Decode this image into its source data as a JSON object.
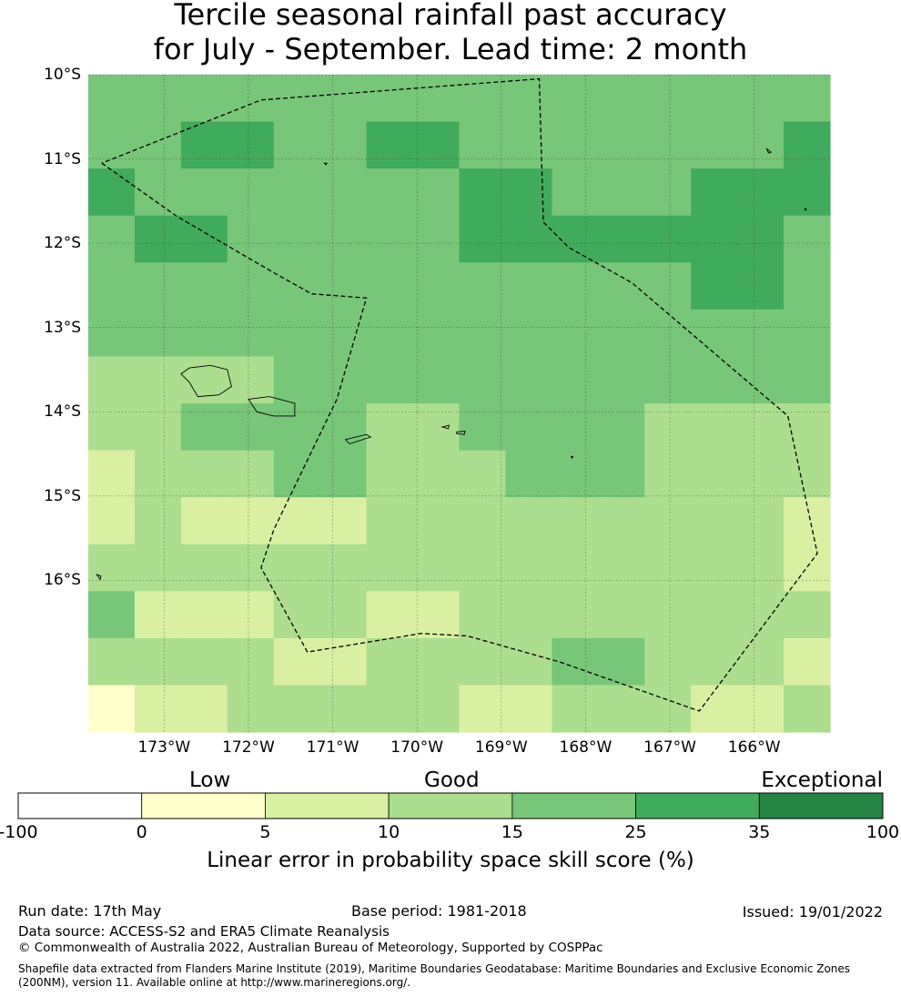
{
  "title": {
    "line1": "Tercile seasonal rainfall past accuracy",
    "line2": "for July - September. Lead time: 2 month"
  },
  "map": {
    "lon_range": [
      -173.9,
      -165.1
    ],
    "lat_range": [
      -17.8,
      -10.0
    ],
    "lat_ticks": [
      {
        "value": -10,
        "label": "10°S"
      },
      {
        "value": -11,
        "label": "11°S"
      },
      {
        "value": -12,
        "label": "12°S"
      },
      {
        "value": -13,
        "label": "13°S"
      },
      {
        "value": -14,
        "label": "14°S"
      },
      {
        "value": -15,
        "label": "15°S"
      },
      {
        "value": -16,
        "label": "16°S"
      }
    ],
    "lon_ticks": [
      {
        "value": -173,
        "label": "173°W"
      },
      {
        "value": -172,
        "label": "172°W"
      },
      {
        "value": -171,
        "label": "171°W"
      },
      {
        "value": -170,
        "label": "170°W"
      },
      {
        "value": -169,
        "label": "169°W"
      },
      {
        "value": -168,
        "label": "168°W"
      },
      {
        "value": -167,
        "label": "167°W"
      },
      {
        "value": -166,
        "label": "166°W"
      }
    ],
    "grid_cols": 16,
    "grid_rows": 14,
    "grid_note_values": "skill class index per cell (0=-100..0, 1=0..5, 2=5..10, 3=10..15, 4=15..25, 5=25..35, 6=35..100)",
    "grid": [
      [
        4,
        4,
        4,
        4,
        4,
        4,
        4,
        4,
        4,
        4,
        4,
        4,
        4,
        4,
        4,
        4
      ],
      [
        4,
        4,
        5,
        5,
        4,
        4,
        5,
        5,
        4,
        4,
        4,
        4,
        4,
        4,
        4,
        5
      ],
      [
        5,
        4,
        4,
        4,
        4,
        4,
        4,
        4,
        5,
        5,
        4,
        4,
        4,
        5,
        5,
        5
      ],
      [
        4,
        5,
        5,
        4,
        4,
        4,
        4,
        4,
        5,
        5,
        5,
        5,
        5,
        5,
        5,
        4
      ],
      [
        4,
        4,
        4,
        4,
        4,
        4,
        4,
        4,
        4,
        4,
        4,
        4,
        4,
        5,
        5,
        4
      ],
      [
        4,
        4,
        4,
        4,
        4,
        4,
        4,
        4,
        4,
        4,
        4,
        4,
        4,
        4,
        4,
        4
      ],
      [
        3,
        3,
        3,
        3,
        4,
        4,
        4,
        4,
        4,
        4,
        4,
        4,
        4,
        4,
        4,
        4
      ],
      [
        3,
        3,
        4,
        4,
        4,
        4,
        3,
        3,
        4,
        4,
        4,
        4,
        3,
        3,
        3,
        3
      ],
      [
        2,
        3,
        3,
        3,
        4,
        4,
        3,
        3,
        3,
        4,
        4,
        4,
        3,
        3,
        3,
        3
      ],
      [
        2,
        3,
        2,
        2,
        2,
        2,
        3,
        3,
        3,
        3,
        3,
        3,
        3,
        3,
        3,
        2
      ],
      [
        3,
        3,
        3,
        3,
        3,
        3,
        3,
        3,
        3,
        3,
        3,
        3,
        3,
        3,
        3,
        2
      ],
      [
        4,
        2,
        2,
        2,
        3,
        3,
        2,
        2,
        3,
        3,
        3,
        3,
        3,
        3,
        3,
        3
      ],
      [
        3,
        3,
        3,
        3,
        2,
        2,
        3,
        3,
        3,
        3,
        4,
        4,
        3,
        3,
        3,
        2
      ],
      [
        1,
        2,
        2,
        3,
        3,
        3,
        3,
        3,
        2,
        2,
        3,
        3,
        3,
        2,
        2,
        3
      ]
    ],
    "eez_boundary": [
      [
        -173.74,
        -11.05
      ],
      [
        -172.85,
        -11.68
      ],
      [
        -171.7,
        -12.35
      ],
      [
        -171.25,
        -12.6
      ],
      [
        -170.6,
        -12.65
      ],
      [
        -170.95,
        -13.85
      ],
      [
        -171.7,
        -15.4
      ],
      [
        -171.85,
        -15.85
      ],
      [
        -171.3,
        -16.85
      ],
      [
        -169.95,
        -16.63
      ],
      [
        -169.4,
        -16.66
      ],
      [
        -168.3,
        -16.97
      ],
      [
        -166.65,
        -17.55
      ],
      [
        -165.25,
        -15.68
      ],
      [
        -165.6,
        -14.05
      ],
      [
        -167.45,
        -12.47
      ],
      [
        -168.2,
        -12.05
      ],
      [
        -168.5,
        -11.75
      ],
      [
        -168.55,
        -10.05
      ],
      [
        -171.85,
        -10.3
      ],
      [
        -173.74,
        -11.05
      ]
    ],
    "islands": [
      {
        "name": "savaii",
        "pts": [
          [
            -172.8,
            -13.55
          ],
          [
            -172.7,
            -13.48
          ],
          [
            -172.45,
            -13.45
          ],
          [
            -172.25,
            -13.5
          ],
          [
            -172.2,
            -13.7
          ],
          [
            -172.35,
            -13.8
          ],
          [
            -172.6,
            -13.82
          ],
          [
            -172.7,
            -13.65
          ],
          [
            -172.8,
            -13.55
          ]
        ]
      },
      {
        "name": "upolu",
        "pts": [
          [
            -172.0,
            -13.85
          ],
          [
            -171.75,
            -13.82
          ],
          [
            -171.45,
            -13.9
          ],
          [
            -171.45,
            -14.05
          ],
          [
            -171.7,
            -14.05
          ],
          [
            -171.9,
            -14.0
          ],
          [
            -172.0,
            -13.85
          ]
        ]
      },
      {
        "name": "tutuila",
        "pts": [
          [
            -170.85,
            -14.33
          ],
          [
            -170.6,
            -14.27
          ],
          [
            -170.55,
            -14.3
          ],
          [
            -170.8,
            -14.38
          ],
          [
            -170.85,
            -14.33
          ]
        ]
      },
      {
        "name": "ofu",
        "pts": [
          [
            -169.7,
            -14.18
          ],
          [
            -169.62,
            -14.16
          ],
          [
            -169.63,
            -14.2
          ],
          [
            -169.7,
            -14.18
          ]
        ]
      },
      {
        "name": "tau",
        "pts": [
          [
            -169.53,
            -14.24
          ],
          [
            -169.43,
            -14.23
          ],
          [
            -169.44,
            -14.27
          ],
          [
            -169.53,
            -14.26
          ],
          [
            -169.53,
            -14.24
          ]
        ]
      },
      {
        "name": "swains",
        "pts": [
          [
            -171.1,
            -11.05
          ],
          [
            -171.07,
            -11.05
          ],
          [
            -171.08,
            -11.07
          ],
          [
            -171.1,
            -11.05
          ]
        ]
      },
      {
        "name": "rose",
        "pts": [
          [
            -168.17,
            -14.53
          ],
          [
            -168.15,
            -14.53
          ],
          [
            -168.16,
            -14.55
          ],
          [
            -168.17,
            -14.53
          ]
        ]
      },
      {
        "name": "niuafoou",
        "pts": [
          [
            -173.8,
            -15.93
          ],
          [
            -173.75,
            -15.95
          ],
          [
            -173.76,
            -15.99
          ],
          [
            -173.8,
            -15.93
          ]
        ]
      },
      {
        "name": "north-reef",
        "pts": [
          [
            -165.85,
            -10.88
          ],
          [
            -165.8,
            -10.92
          ],
          [
            -165.83,
            -10.93
          ],
          [
            -165.85,
            -10.88
          ]
        ]
      },
      {
        "name": "east-reef",
        "pts": [
          [
            -165.4,
            -11.58
          ],
          [
            -165.38,
            -11.6
          ],
          [
            -165.39,
            -11.61
          ],
          [
            -165.4,
            -11.58
          ]
        ]
      }
    ]
  },
  "colorbar": {
    "categories": [
      {
        "label": "Low",
        "value": 2.5
      },
      {
        "label": "Good",
        "value": 12.5
      },
      {
        "label": "Exceptional",
        "value": 67.5
      }
    ],
    "boundaries": [
      "-100",
      "0",
      "5",
      "10",
      "15",
      "25",
      "35",
      "100"
    ],
    "colors": [
      "#ffffff",
      "#ffffcc",
      "#d9f0a3",
      "#addd8e",
      "#78c679",
      "#41ab5d",
      "#238443"
    ],
    "label": "Linear error in probability space skill score (%)"
  },
  "footer": {
    "run_date": "Run date: 17th May",
    "base_period": "Base period: 1981-2018",
    "issued": "Issued: 19/01/2022",
    "data_source": "Data source: ACCESS-S2 and ERA5 Climate Reanalysis",
    "copyright": "© Commonwealth of Australia 2022, Australian Bureau of Meteorology, Supported by COSPPac",
    "shapefile": "Shapefile data extracted from Flanders Marine Institute (2019), Maritime Boundaries Geodatabase: Maritime Boundaries and Exclusive Economic Zones (200NM), version 11. Available online at http://www.marineregions.org/."
  }
}
